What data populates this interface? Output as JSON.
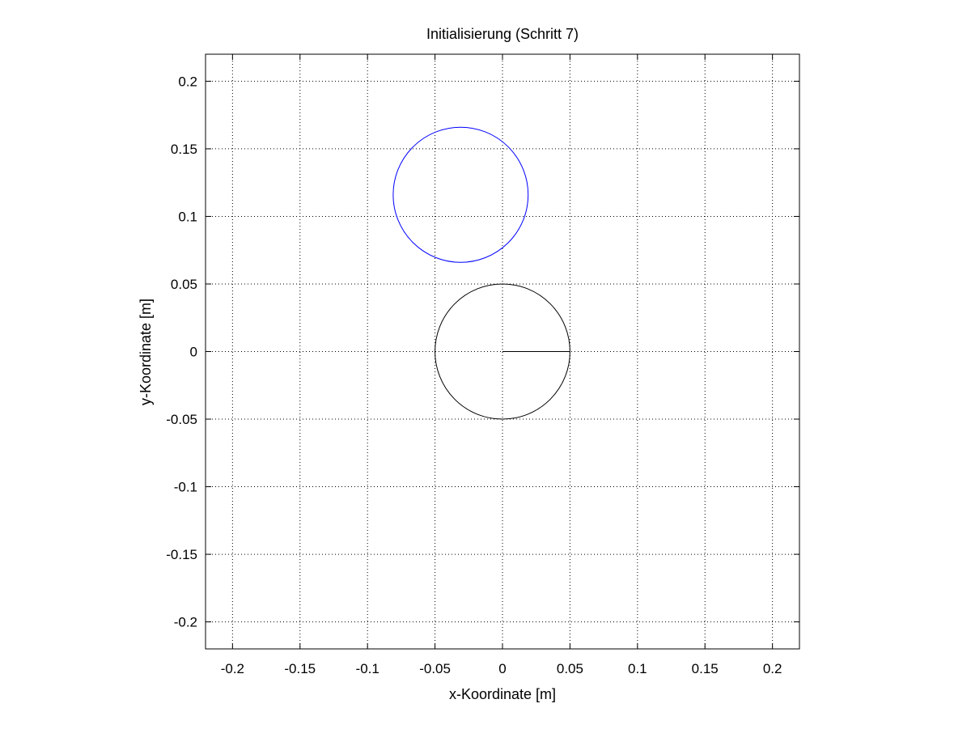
{
  "chart_data": {
    "type": "line",
    "title": "Initialisierung (Schritt 7)",
    "xlabel": "x-Koordinate [m]",
    "ylabel": "y-Koordinate [m]",
    "xlim": [
      -0.22,
      0.22
    ],
    "ylim": [
      -0.22,
      0.22
    ],
    "xticks": [
      -0.2,
      -0.15,
      -0.1,
      -0.05,
      0,
      0.05,
      0.1,
      0.15,
      0.2
    ],
    "yticks": [
      -0.2,
      -0.15,
      -0.1,
      -0.05,
      0,
      0.05,
      0.1,
      0.15,
      0.2
    ],
    "xtick_labels": [
      "-0.2",
      "-0.15",
      "-0.1",
      "-0.05",
      "0",
      "0.05",
      "0.1",
      "0.15",
      "0.2"
    ],
    "ytick_labels": [
      "-0.2",
      "-0.15",
      "-0.1",
      "-0.05",
      "0",
      "0.05",
      "0.1",
      "0.15",
      "0.2"
    ],
    "grid": true,
    "grid_style": "dotted",
    "aspect": "equal",
    "shapes": [
      {
        "kind": "circle",
        "center": [
          -0.031,
          0.116
        ],
        "radius": 0.05,
        "color": "#0000ff"
      },
      {
        "kind": "circle",
        "center": [
          0,
          0
        ],
        "radius": 0.05,
        "color": "#000000"
      },
      {
        "kind": "segment",
        "from": [
          0,
          0
        ],
        "to": [
          0.05,
          0
        ],
        "color": "#000000"
      }
    ]
  }
}
